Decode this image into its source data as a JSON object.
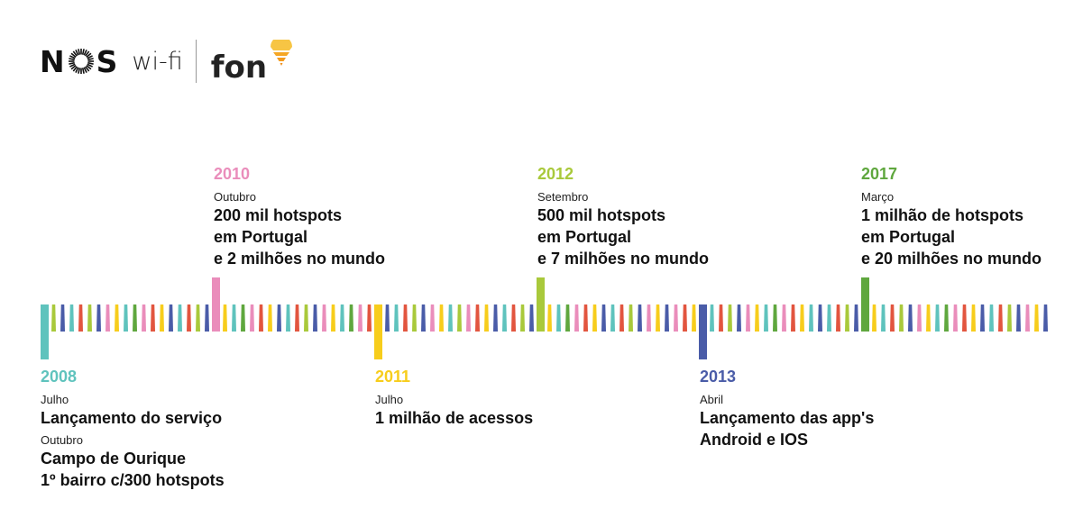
{
  "logo": {
    "brand_left": "NOS",
    "brand_left_parts": [
      "N",
      "S"
    ],
    "product": "wi-fi",
    "brand_right": "fon",
    "icons": [
      "nos-sunburst-icon",
      "fon-signal-icon"
    ]
  },
  "colors": {
    "teal": "#5fc3bd",
    "lime": "#a9c93b",
    "blue": "#4a5ca8",
    "red": "#e2553f",
    "pink": "#ea8dbb",
    "yellow": "#f7cd1c",
    "green": "#5fa73e",
    "orange": "#f5a623"
  },
  "events": [
    {
      "year": "2008",
      "color": "#5fc3bd",
      "position": "below",
      "items": [
        {
          "month": "Julho",
          "lines": [
            "Lançamento do serviço"
          ]
        },
        {
          "month": "Outubro",
          "lines": [
            "Campo de Ourique",
            "1º bairro c/300 hotspots"
          ]
        }
      ]
    },
    {
      "year": "2010",
      "color": "#ea8dbb",
      "position": "above",
      "items": [
        {
          "month": "Outubro",
          "lines": [
            "200 mil hotspots",
            "em Portugal",
            "e 2 milhões no mundo"
          ]
        }
      ]
    },
    {
      "year": "2011",
      "color": "#f7cd1c",
      "position": "below",
      "items": [
        {
          "month": "Julho",
          "lines": [
            "1 milhão de acessos"
          ]
        }
      ]
    },
    {
      "year": "2012",
      "color": "#a9c93b",
      "position": "above",
      "items": [
        {
          "month": "Setembro",
          "lines": [
            "500 mil hotspots",
            "em Portugal",
            "e 7 milhões no mundo"
          ]
        }
      ]
    },
    {
      "year": "2013",
      "color": "#4a5ca8",
      "position": "below",
      "items": [
        {
          "month": "Abril",
          "lines": [
            "Lançamento das app's",
            "Android e IOS"
          ]
        }
      ]
    },
    {
      "year": "2017",
      "color": "#5fa73e",
      "position": "above",
      "items": [
        {
          "month": "Março",
          "lines": [
            "1 milhão de hotspots",
            "em Portugal",
            "e 20 milhões no mundo"
          ]
        }
      ]
    }
  ],
  "timeline_bars": {
    "sequence": [
      "teal*",
      "lime",
      "blue",
      "teal",
      "red",
      "lime",
      "blue",
      "pink",
      "yellow",
      "teal",
      "green",
      "pink",
      "red",
      "yellow",
      "blue",
      "teal",
      "red",
      "lime",
      "blue",
      "pink^",
      "yellow",
      "teal",
      "green",
      "pink",
      "red",
      "yellow",
      "blue",
      "teal",
      "red",
      "lime",
      "blue",
      "pink",
      "yellow",
      "teal",
      "green",
      "pink",
      "red",
      "yellow*",
      "blue",
      "teal",
      "red",
      "lime",
      "blue",
      "pink",
      "yellow",
      "teal",
      "lime",
      "pink",
      "red",
      "yellow",
      "blue",
      "teal",
      "red",
      "lime",
      "blue",
      "lime^",
      "yellow",
      "teal",
      "green",
      "pink",
      "red",
      "yellow",
      "blue",
      "teal",
      "red",
      "lime",
      "blue",
      "pink",
      "yellow",
      "blue",
      "pink",
      "red",
      "yellow",
      "blue*",
      "teal",
      "red",
      "lime",
      "blue",
      "pink",
      "yellow",
      "teal",
      "green",
      "pink",
      "red",
      "yellow",
      "teal",
      "blue",
      "teal",
      "red",
      "lime",
      "blue",
      "green^",
      "yellow",
      "teal",
      "red",
      "lime",
      "blue",
      "pink",
      "yellow",
      "teal",
      "green",
      "pink",
      "red",
      "yellow",
      "blue",
      "teal",
      "red",
      "lime",
      "blue",
      "pink",
      "yellow",
      "blue"
    ]
  }
}
